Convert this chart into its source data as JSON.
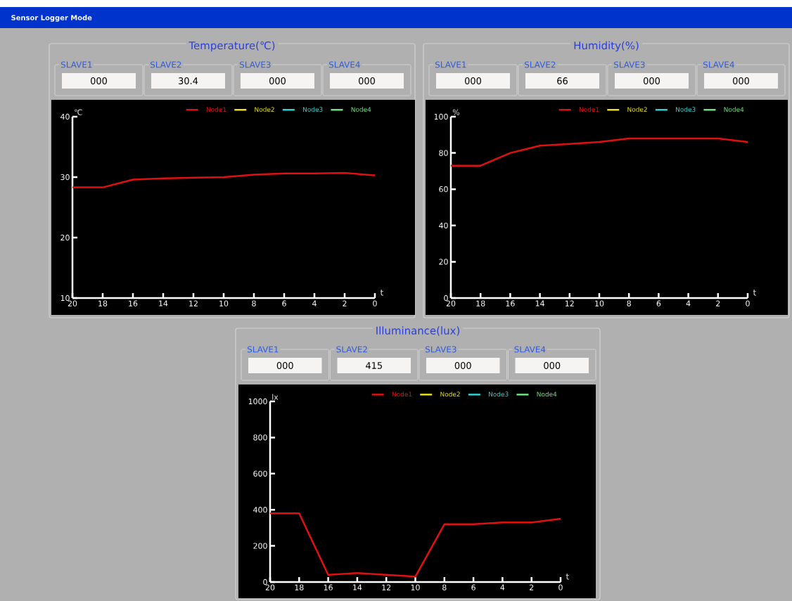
{
  "chart_data": [
    {
      "type": "line",
      "title": "Temperature(℃)",
      "ylabel": "℃",
      "xlabel": "t",
      "x": [
        20,
        18,
        16,
        14,
        12,
        10,
        8,
        6,
        4,
        2,
        0
      ],
      "series": [
        {
          "name": "Node1",
          "color": "#e01010",
          "values": [
            28.3,
            28.3,
            29.6,
            29.8,
            29.9,
            30.0,
            30.4,
            30.6,
            30.6,
            30.7,
            30.3
          ]
        },
        {
          "name": "Node2",
          "color": "#e8e020",
          "values": [
            null,
            null,
            null,
            null,
            null,
            null,
            null,
            null,
            null,
            null,
            null
          ]
        },
        {
          "name": "Node3",
          "color": "#30d0d0",
          "values": [
            null,
            null,
            null,
            null,
            null,
            null,
            null,
            null,
            null,
            null,
            null
          ]
        },
        {
          "name": "Node4",
          "color": "#70e080",
          "values": [
            null,
            null,
            null,
            null,
            null,
            null,
            null,
            null,
            null,
            null,
            null
          ]
        }
      ],
      "xlim": [
        20,
        0
      ],
      "xticks": [
        20,
        18,
        16,
        14,
        12,
        10,
        8,
        6,
        4,
        2,
        0
      ],
      "ylim": [
        10,
        40
      ],
      "yticks": [
        10,
        20,
        30,
        40
      ],
      "legend": "top right",
      "annotations": [
        "SLAVE1",
        "000",
        "SLAVE2",
        "30.4",
        "SLAVE3",
        "000",
        "SLAVE4",
        "000",
        "Sensor Logger Mode"
      ]
    },
    {
      "type": "line",
      "title": "Humidity(%)",
      "ylabel": "%",
      "xlabel": "t",
      "x": [
        20,
        18,
        16,
        14,
        12,
        10,
        8,
        6,
        4,
        2,
        0
      ],
      "series": [
        {
          "name": "Node1",
          "color": "#e01010",
          "values": [
            73,
            73,
            80,
            84,
            85,
            86,
            88,
            88,
            88,
            88,
            86
          ]
        },
        {
          "name": "Node2",
          "color": "#e8e020",
          "values": [
            null,
            null,
            null,
            null,
            null,
            null,
            null,
            null,
            null,
            null,
            null
          ]
        },
        {
          "name": "Node3",
          "color": "#30d0d0",
          "values": [
            null,
            null,
            null,
            null,
            null,
            null,
            null,
            null,
            null,
            null,
            null
          ]
        },
        {
          "name": "Node4",
          "color": "#70e080",
          "values": [
            null,
            null,
            null,
            null,
            null,
            null,
            null,
            null,
            null,
            null,
            null
          ]
        }
      ],
      "xlim": [
        20,
        0
      ],
      "xticks": [
        20,
        18,
        16,
        14,
        12,
        10,
        8,
        6,
        4,
        2,
        0
      ],
      "ylim": [
        0,
        100
      ],
      "yticks": [
        0,
        20,
        40,
        60,
        80,
        100
      ],
      "legend": "top right",
      "annotations": [
        "SLAVE1",
        "000",
        "SLAVE2",
        "66",
        "SLAVE3",
        "000",
        "SLAVE4",
        "000"
      ]
    },
    {
      "type": "line",
      "title": "Illuminance(lux)",
      "ylabel": "lx",
      "xlabel": "t",
      "x": [
        20,
        18,
        16,
        14,
        12,
        10,
        8,
        6,
        4,
        2,
        0
      ],
      "series": [
        {
          "name": "Node1",
          "color": "#e01010",
          "values": [
            380,
            380,
            40,
            50,
            40,
            30,
            320,
            320,
            330,
            330,
            350
          ]
        },
        {
          "name": "Node2",
          "color": "#e8e020",
          "values": [
            null,
            null,
            null,
            null,
            null,
            null,
            null,
            null,
            null,
            null,
            null
          ]
        },
        {
          "name": "Node3",
          "color": "#30d0d0",
          "values": [
            null,
            null,
            null,
            null,
            null,
            null,
            null,
            null,
            null,
            null,
            null
          ]
        },
        {
          "name": "Node4",
          "color": "#70e080",
          "values": [
            null,
            null,
            null,
            null,
            null,
            null,
            null,
            null,
            null,
            null,
            null
          ]
        }
      ],
      "xlim": [
        20,
        0
      ],
      "xticks": [
        20,
        18,
        16,
        14,
        12,
        10,
        8,
        6,
        4,
        2,
        0
      ],
      "ylim": [
        0,
        1000
      ],
      "yticks": [
        0,
        200,
        400,
        600,
        800,
        1000
      ],
      "legend": "top right",
      "annotations": [
        "SLAVE1",
        "000",
        "SLAVE2",
        "415",
        "SLAVE3",
        "000",
        "SLAVE4",
        "000"
      ]
    }
  ]
}
